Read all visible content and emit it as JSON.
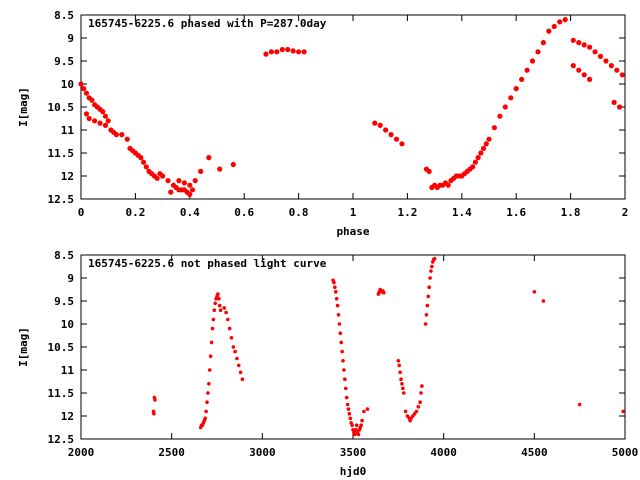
{
  "chart_data": [
    {
      "type": "scatter",
      "title": "165745-6225.6 phased with P=287.0day",
      "xlabel": "phase",
      "ylabel": "I[mag]",
      "xlim": [
        0,
        2
      ],
      "ylim": [
        8.5,
        12.5
      ],
      "y_inverted": true,
      "grid": false,
      "xticks": [
        "0",
        "0.2",
        "0.4",
        "0.6",
        "0.8",
        "1",
        "1.2",
        "1.4",
        "1.6",
        "1.8",
        "2"
      ],
      "yticks": [
        "8.5",
        "9",
        "9.5",
        "10",
        "10.5",
        "11",
        "11.5",
        "12",
        "12.5"
      ],
      "point_color": "#ff0000",
      "series": [
        {
          "x": [
            0.0,
            0.01,
            0.02,
            0.03,
            0.04,
            0.05,
            0.06,
            0.07,
            0.08,
            0.09,
            0.1,
            0.02,
            0.03,
            0.05,
            0.07,
            0.09,
            0.11,
            0.12,
            0.13,
            0.15,
            0.17,
            0.18,
            0.19,
            0.2,
            0.21,
            0.22,
            0.23,
            0.24,
            0.25,
            0.26,
            0.27,
            0.28,
            0.29,
            0.3,
            0.32,
            0.34,
            0.35,
            0.36,
            0.37,
            0.38,
            0.39,
            0.4,
            0.41,
            0.33,
            0.36,
            0.38,
            0.4,
            0.42,
            0.44,
            0.47,
            0.51,
            0.56,
            0.68,
            0.7,
            0.72,
            0.74,
            0.76,
            0.78,
            0.8,
            0.82,
            1.08,
            1.1,
            1.12,
            1.14,
            1.16,
            1.18,
            1.27,
            1.28,
            1.29,
            1.3,
            1.31,
            1.32,
            1.33,
            1.34,
            1.35,
            1.36,
            1.37,
            1.38,
            1.39,
            1.4,
            1.41,
            1.42,
            1.43,
            1.44,
            1.45,
            1.46,
            1.47,
            1.48,
            1.49,
            1.5,
            1.52,
            1.54,
            1.56,
            1.58,
            1.6,
            1.62,
            1.64,
            1.66,
            1.68,
            1.7,
            1.72,
            1.74,
            1.76,
            1.78,
            1.81,
            1.83,
            1.85,
            1.87,
            1.89,
            1.91,
            1.93,
            1.95,
            1.97,
            1.99,
            1.81,
            1.83,
            1.85,
            1.87,
            1.96,
            1.98
          ],
          "y": [
            10.0,
            10.1,
            10.2,
            10.3,
            10.35,
            10.45,
            10.5,
            10.55,
            10.6,
            10.7,
            10.8,
            10.65,
            10.75,
            10.8,
            10.85,
            10.9,
            11.0,
            11.05,
            11.1,
            11.1,
            11.2,
            11.4,
            11.45,
            11.5,
            11.55,
            11.6,
            11.7,
            11.8,
            11.9,
            11.95,
            12.0,
            12.05,
            11.95,
            12.0,
            12.1,
            12.2,
            12.25,
            12.3,
            12.3,
            12.3,
            12.35,
            12.4,
            12.3,
            12.35,
            12.1,
            12.15,
            12.2,
            12.1,
            11.9,
            11.6,
            11.85,
            11.75,
            9.35,
            9.3,
            9.3,
            9.25,
            9.25,
            9.28,
            9.3,
            9.3,
            10.85,
            10.9,
            11.0,
            11.1,
            11.2,
            11.3,
            11.85,
            11.9,
            12.25,
            12.2,
            12.25,
            12.2,
            12.2,
            12.15,
            12.2,
            12.1,
            12.05,
            12.0,
            12.0,
            12.0,
            11.95,
            11.9,
            11.85,
            11.8,
            11.7,
            11.6,
            11.5,
            11.4,
            11.3,
            11.2,
            10.95,
            10.7,
            10.5,
            10.3,
            10.1,
            9.9,
            9.7,
            9.5,
            9.3,
            9.1,
            8.85,
            8.75,
            8.65,
            8.6,
            9.05,
            9.1,
            9.15,
            9.2,
            9.3,
            9.4,
            9.5,
            9.6,
            9.7,
            9.8,
            9.6,
            9.7,
            9.8,
            9.9,
            10.4,
            10.5
          ]
        }
      ]
    },
    {
      "type": "scatter",
      "title": "165745-6225.6 not phased light curve",
      "xlabel": "hjd0",
      "ylabel": "I[mag]",
      "xlim": [
        2000,
        5000
      ],
      "ylim": [
        8.5,
        12.5
      ],
      "y_inverted": true,
      "grid": false,
      "xticks": [
        "2000",
        "2500",
        "3000",
        "3500",
        "4000",
        "4500",
        "5000"
      ],
      "yticks": [
        "8.5",
        "9",
        "9.5",
        "10",
        "10.5",
        "11",
        "11.5",
        "12",
        "12.5"
      ],
      "point_color": "#ff0000",
      "series": [
        {
          "x": [
            2400,
            2402,
            2405,
            2408,
            2660,
            2665,
            2670,
            2675,
            2680,
            2685,
            2690,
            2695,
            2700,
            2705,
            2710,
            2715,
            2720,
            2725,
            2730,
            2735,
            2740,
            2745,
            2750,
            2755,
            2760,
            2765,
            2770,
            2790,
            2800,
            2810,
            2820,
            2830,
            2840,
            2850,
            2860,
            2870,
            2880,
            2890,
            3390,
            3395,
            3400,
            3405,
            3410,
            3415,
            3420,
            3425,
            3430,
            3435,
            3440,
            3445,
            3450,
            3455,
            3460,
            3465,
            3470,
            3475,
            3480,
            3485,
            3490,
            3495,
            3500,
            3505,
            3510,
            3515,
            3520,
            3525,
            3530,
            3535,
            3540,
            3545,
            3550,
            3560,
            3580,
            3640,
            3645,
            3650,
            3655,
            3660,
            3665,
            3670,
            3750,
            3755,
            3760,
            3765,
            3770,
            3775,
            3780,
            3790,
            3800,
            3810,
            3815,
            3820,
            3830,
            3840,
            3850,
            3860,
            3870,
            3875,
            3880,
            3900,
            3905,
            3910,
            3915,
            3920,
            3925,
            3930,
            3935,
            3940,
            3945,
            3950,
            4500,
            4550,
            4750,
            4990
          ],
          "y": [
            11.9,
            11.95,
            11.6,
            11.65,
            12.25,
            12.2,
            12.2,
            12.15,
            12.1,
            12.05,
            11.9,
            11.7,
            11.5,
            11.3,
            11.0,
            10.7,
            10.4,
            10.1,
            9.9,
            9.7,
            9.55,
            9.45,
            9.4,
            9.35,
            9.45,
            9.6,
            9.7,
            9.65,
            9.75,
            9.9,
            10.1,
            10.3,
            10.5,
            10.6,
            10.75,
            10.9,
            11.05,
            11.2,
            9.05,
            9.1,
            9.2,
            9.3,
            9.45,
            9.6,
            9.8,
            10.0,
            10.2,
            10.4,
            10.6,
            10.8,
            11.0,
            11.2,
            11.4,
            11.6,
            11.75,
            11.85,
            11.95,
            12.05,
            12.15,
            12.2,
            12.3,
            12.35,
            12.4,
            12.3,
            12.2,
            12.35,
            12.4,
            12.3,
            12.25,
            12.2,
            12.1,
            11.9,
            11.85,
            9.35,
            9.3,
            9.25,
            9.3,
            9.3,
            9.28,
            9.32,
            10.8,
            10.9,
            11.05,
            11.2,
            11.3,
            11.4,
            11.5,
            11.9,
            12.0,
            12.05,
            12.1,
            12.05,
            12.0,
            11.95,
            11.9,
            11.8,
            11.7,
            11.5,
            11.35,
            10.0,
            9.8,
            9.6,
            9.4,
            9.2,
            9.0,
            8.85,
            8.75,
            8.65,
            8.6,
            8.58,
            9.3,
            9.5,
            11.75,
            11.9
          ]
        }
      ]
    }
  ]
}
